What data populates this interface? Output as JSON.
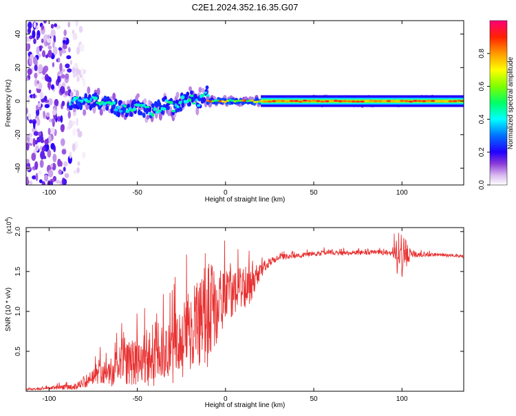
{
  "chart_data": [
    {
      "type": "heatmap",
      "title": "C2E1.2024.352.16.35.G07",
      "xlabel": "Height of straight line (km)",
      "ylabel": "Frequency (Hz)",
      "xlim": [
        -113,
        135
      ],
      "ylim": [
        -50,
        48
      ],
      "xticks": [
        -100,
        -50,
        0,
        50,
        100
      ],
      "yticks": [
        -40,
        -20,
        0,
        20,
        40
      ],
      "colorbar": {
        "label": "Normalized spectral amplitude",
        "range": [
          0,
          1
        ],
        "ticks": [
          0.0,
          0.2,
          0.4,
          0.6,
          0.8
        ]
      },
      "regions": [
        {
          "x_range": [
            -113,
            -88
          ],
          "f_range": [
            -50,
            48
          ],
          "amplitude": [
            0.02,
            0.2
          ],
          "pattern": "scattered"
        },
        {
          "x_range": [
            -88,
            -80
          ],
          "f_range": [
            -50,
            48
          ],
          "amplitude": [
            0.01,
            0.05
          ],
          "pattern": "faint scattered"
        },
        {
          "x_range": [
            -88,
            -10
          ],
          "f_range": [
            -10,
            10
          ],
          "amplitude": [
            0.2,
            0.5
          ],
          "pattern": "band with wandering center"
        },
        {
          "x_range": [
            -10,
            20
          ],
          "f_range": [
            -3,
            3
          ],
          "amplitude": [
            0.3,
            0.95
          ],
          "pattern": "narrow band"
        },
        {
          "x_range": [
            20,
            135
          ],
          "f_range": [
            -2,
            2
          ],
          "amplitude": [
            0.5,
            0.95
          ],
          "pattern": "narrow band"
        }
      ]
    },
    {
      "type": "line",
      "xlabel": "Height of straight line (km)",
      "ylabel": "SNR (10 * v/v)",
      "yscale_label": "(x10",
      "yscale_exp": "4",
      "xlim": [
        -113,
        135
      ],
      "ylim": [
        0,
        2.05
      ],
      "xticks": [
        -100,
        -50,
        0,
        50,
        100
      ],
      "yticks": [
        0.5,
        1.0,
        1.5,
        2.0
      ],
      "series": [
        {
          "color": "#e83030",
          "envelope": {
            "x": [
              -113,
              -100,
              -85,
              -78,
              -70,
              -60,
              -50,
              -45,
              -40,
              -35,
              -30,
              -25,
              -20,
              -15,
              -10,
              -5,
              0,
              5,
              10,
              15,
              20,
              25,
              30,
              40,
              50,
              60,
              70,
              80,
              90,
              95,
              98,
              100,
              102,
              105,
              110,
              120,
              130,
              135
            ],
            "mean": [
              0.02,
              0.04,
              0.06,
              0.12,
              0.22,
              0.3,
              0.38,
              0.42,
              0.48,
              0.45,
              0.55,
              0.6,
              0.8,
              0.88,
              0.95,
              1.02,
              1.2,
              1.25,
              1.28,
              1.35,
              1.5,
              1.62,
              1.68,
              1.7,
              1.72,
              1.74,
              1.73,
              1.74,
              1.73,
              1.72,
              1.7,
              1.7,
              1.71,
              1.72,
              1.71,
              1.71,
              1.7,
              1.69
            ],
            "amplitude": [
              0.01,
              0.02,
              0.04,
              0.08,
              0.15,
              0.25,
              0.3,
              0.35,
              0.45,
              0.35,
              0.45,
              0.45,
              0.55,
              0.6,
              0.65,
              0.55,
              0.3,
              0.3,
              0.28,
              0.22,
              0.1,
              0.05,
              0.04,
              0.03,
              0.03,
              0.03,
              0.03,
              0.03,
              0.03,
              0.06,
              0.35,
              0.3,
              0.2,
              0.05,
              0.03,
              0.02,
              0.02,
              0.02
            ]
          }
        }
      ]
    }
  ]
}
